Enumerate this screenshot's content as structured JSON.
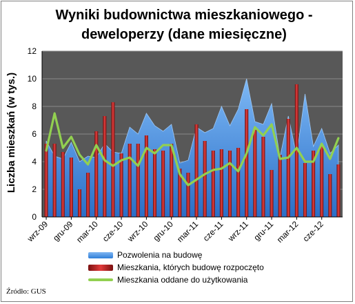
{
  "chart_data": {
    "type": "bar",
    "title": "Wyniki budownictwa mieszkaniowego - deweloperzy (dane miesięczne)",
    "ylabel": "Liczba mieszkań (w tys.)",
    "xlabel": "",
    "ylim": [
      0,
      12
    ],
    "yticks": [
      "0",
      "2",
      "4",
      "6",
      "8",
      "10",
      "12"
    ],
    "x_tick_labels": [
      "wrz-09",
      "gru-09",
      "mar-10",
      "cze-10",
      "wrz-10",
      "gru-10",
      "mar-11",
      "cze-11",
      "wrz-11",
      "gru-11",
      "mar-12",
      "cze-12"
    ],
    "x": [
      "wrz-09",
      "paź-09",
      "lis-09",
      "gru-09",
      "sty-10",
      "lut-10",
      "mar-10",
      "kwi-10",
      "maj-10",
      "cze-10",
      "lip-10",
      "sie-10",
      "wrz-10",
      "paź-10",
      "lis-10",
      "gru-10",
      "sty-11",
      "lut-11",
      "mar-11",
      "kwi-11",
      "maj-11",
      "cze-11",
      "lip-11",
      "sie-11",
      "wrz-11",
      "paź-11",
      "lis-11",
      "gru-11",
      "sty-12",
      "lut-12",
      "mar-12",
      "kwi-12",
      "maj-12",
      "cze-12",
      "lip-12",
      "sie-12"
    ],
    "grid": true,
    "legend_placement": "bottom",
    "series": [
      {
        "name": "Pozwolenia na budowę",
        "type": "area",
        "color": "#4f95e8",
        "values": [
          5.5,
          4.4,
          4.2,
          5.4,
          4.0,
          4.4,
          4.3,
          5.3,
          4.7,
          4.6,
          6.5,
          6.0,
          7.5,
          6.6,
          6.2,
          6.7,
          3.9,
          4.1,
          6.5,
          6.1,
          6.4,
          8.0,
          6.6,
          7.8,
          10.0,
          6.9,
          6.7,
          8.2,
          4.3,
          7.3,
          4.4,
          8.9,
          5.1,
          6.4,
          4.6,
          5.2
        ]
      },
      {
        "name": "Mieszkania, których budowę rozpoczęto",
        "type": "bar",
        "color": "#c0262b",
        "values": [
          5.3,
          5.3,
          4.7,
          4.3,
          2.0,
          3.2,
          6.2,
          7.3,
          8.3,
          4.6,
          5.3,
          5.3,
          5.9,
          4.9,
          4.8,
          5.3,
          3.5,
          3.2,
          6.7,
          5.5,
          4.8,
          4.9,
          4.8,
          5.0,
          7.8,
          6.3,
          5.8,
          3.4,
          4.5,
          7.1,
          9.6,
          3.9,
          4.8,
          5.1,
          3.1,
          3.8
        ]
      },
      {
        "name": "Mieszkania oddane do użytkowania",
        "type": "line",
        "color": "#92d050",
        "values": [
          4.8,
          7.5,
          5.0,
          5.8,
          4.5,
          3.8,
          5.2,
          4.1,
          3.7,
          4.1,
          4.3,
          3.7,
          5.0,
          4.6,
          5.2,
          5.2,
          3.1,
          2.3,
          2.7,
          3.1,
          3.4,
          3.5,
          3.9,
          3.3,
          4.6,
          6.5,
          5.9,
          6.7,
          4.2,
          4.3,
          5.0,
          4.0,
          4.0,
          5.3,
          4.2,
          5.7
        ]
      }
    ]
  },
  "source": "Źródło: GUS"
}
